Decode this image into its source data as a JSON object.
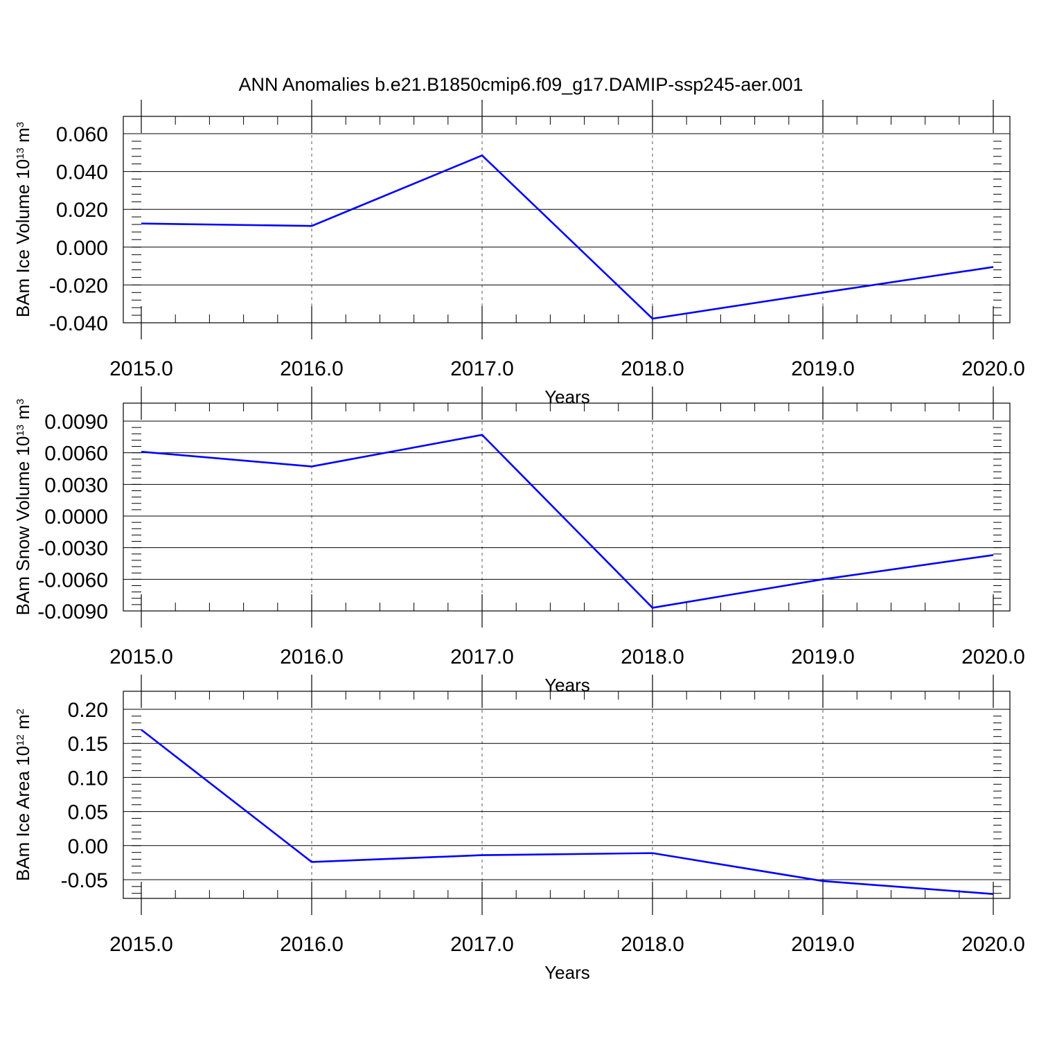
{
  "figure": {
    "title": "ANN Anomalies b.e21.B1850cmip6.f09_g17.DAMIP-ssp245-aer.001"
  },
  "chart_data": [
    {
      "type": "line",
      "xlabel": "Years",
      "ylabel": {
        "text": "BAm Ice Volume 10",
        "exp": "13",
        "unit": " m",
        "unit_exp": "3"
      },
      "x": [
        2015,
        2016,
        2017,
        2018,
        2019,
        2020
      ],
      "x_tick_labels": [
        "2015.0",
        "2016.0",
        "2017.0",
        "2018.0",
        "2019.0",
        "2020.0"
      ],
      "xlim": [
        2015,
        2020
      ],
      "ylim": [
        -0.04,
        0.06
      ],
      "y_ticks": [
        -0.04,
        -0.02,
        0.0,
        0.02,
        0.04,
        0.06
      ],
      "y_tick_labels": [
        "-0.040",
        "-0.020",
        "0.000",
        "0.020",
        "0.040",
        "0.060"
      ],
      "y_minor_step": 0.004,
      "grid": "x-dashed",
      "series": [
        {
          "color": "#0000ff",
          "values": [
            0.0125,
            0.0112,
            0.0485,
            -0.0378,
            -0.024,
            -0.0105
          ]
        }
      ]
    },
    {
      "type": "line",
      "xlabel": "Years",
      "ylabel": {
        "text": "BAm Snow Volume 10",
        "exp": "13",
        "unit": " m",
        "unit_exp": "3"
      },
      "x": [
        2015,
        2016,
        2017,
        2018,
        2019,
        2020
      ],
      "x_tick_labels": [
        "2015.0",
        "2016.0",
        "2017.0",
        "2018.0",
        "2019.0",
        "2020.0"
      ],
      "xlim": [
        2015,
        2020
      ],
      "ylim": [
        -0.009,
        0.009
      ],
      "y_ticks": [
        -0.009,
        -0.006,
        -0.003,
        0.0,
        0.003,
        0.006,
        0.009
      ],
      "y_tick_labels": [
        "-0.0090",
        "-0.0060",
        "-0.0030",
        "0.0000",
        "0.0030",
        "0.0060",
        "0.0090"
      ],
      "y_minor_step": 0.0006,
      "grid": "x-dashed",
      "series": [
        {
          "color": "#0000ff",
          "values": [
            0.0061,
            0.0047,
            0.0077,
            -0.0087,
            -0.006,
            -0.0037
          ]
        }
      ]
    },
    {
      "type": "line",
      "xlabel": "Years",
      "ylabel": {
        "text": "BAm Ice Area 10",
        "exp": "12",
        "unit": " m",
        "unit_exp": "2"
      },
      "x": [
        2015,
        2016,
        2017,
        2018,
        2019,
        2020
      ],
      "x_tick_labels": [
        "2015.0",
        "2016.0",
        "2017.0",
        "2018.0",
        "2019.0",
        "2020.0"
      ],
      "xlim": [
        2015,
        2020
      ],
      "ylim": [
        -0.08,
        0.2
      ],
      "y_ticks": [
        -0.05,
        0.0,
        0.05,
        0.1,
        0.15,
        0.2
      ],
      "y_tick_labels": [
        "-0.05",
        "0.00",
        "0.05",
        "0.10",
        "0.15",
        "0.20"
      ],
      "y_minor_step": 0.01,
      "grid": "x-dashed",
      "series": [
        {
          "color": "#0000ff",
          "values": [
            0.17,
            -0.024,
            -0.014,
            -0.011,
            -0.052,
            -0.071
          ]
        }
      ]
    }
  ]
}
